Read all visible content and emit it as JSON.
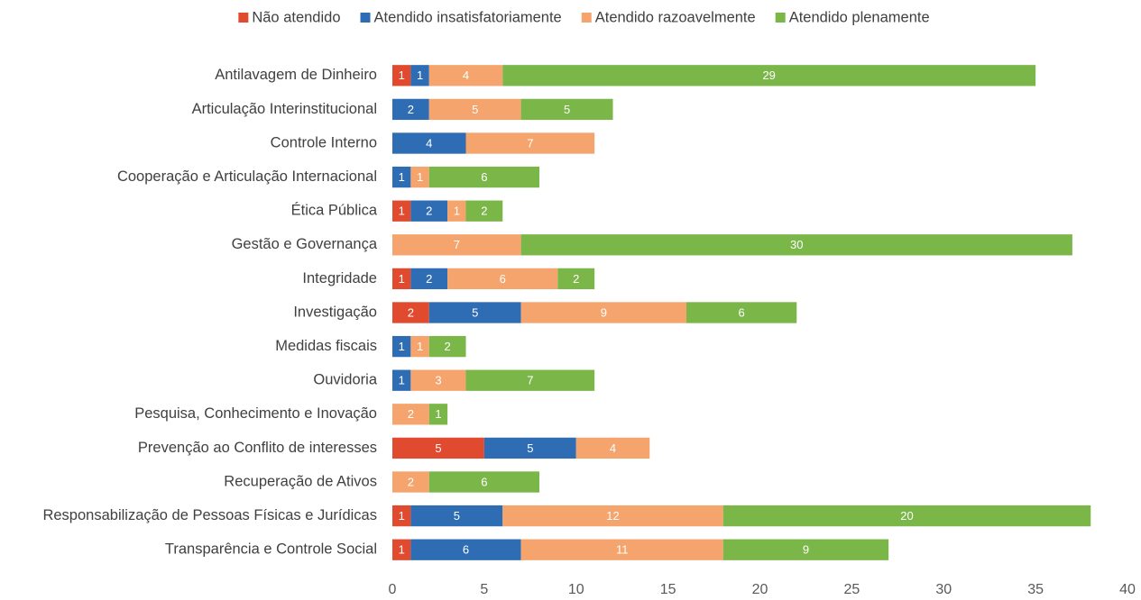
{
  "chart_data": {
    "type": "stacked-barh",
    "categories": [
      "Antilavagem de Dinheiro",
      "Articulação Interinstitucional",
      "Controle Interno",
      "Cooperação e Articulação Internacional",
      "Ética Pública",
      "Gestão e Governança",
      "Integridade",
      "Investigação",
      "Medidas fiscais",
      "Ouvidoria",
      "Pesquisa, Conhecimento e Inovação",
      "Prevenção ao Conflito de interesses",
      "Recuperação de Ativos",
      "Responsabilização de Pessoas Físicas e Jurídicas",
      "Transparência e Controle Social"
    ],
    "series": [
      {
        "name": "Não atendido",
        "color": "#e04a2f",
        "values": [
          1,
          null,
          null,
          null,
          1,
          null,
          1,
          2,
          null,
          null,
          null,
          5,
          null,
          1,
          1
        ]
      },
      {
        "name": "Atendido insatisfatoriamente",
        "color": "#2e6db4",
        "values": [
          1,
          2,
          4,
          1,
          2,
          null,
          2,
          5,
          1,
          1,
          null,
          5,
          null,
          5,
          6
        ]
      },
      {
        "name": "Atendido razoavelmente",
        "color": "#f4a46c",
        "values": [
          4,
          5,
          7,
          1,
          1,
          7,
          6,
          9,
          1,
          3,
          2,
          4,
          2,
          12,
          11
        ]
      },
      {
        "name": "Atendido plenamente",
        "color": "#7ab648",
        "values": [
          29,
          5,
          null,
          6,
          2,
          30,
          2,
          6,
          2,
          7,
          1,
          null,
          6,
          20,
          9
        ]
      }
    ],
    "xlim": [
      0,
      40
    ],
    "xticks": [
      0,
      5,
      10,
      15,
      20,
      25,
      30,
      35,
      40
    ],
    "grid": false,
    "legend": "top"
  }
}
